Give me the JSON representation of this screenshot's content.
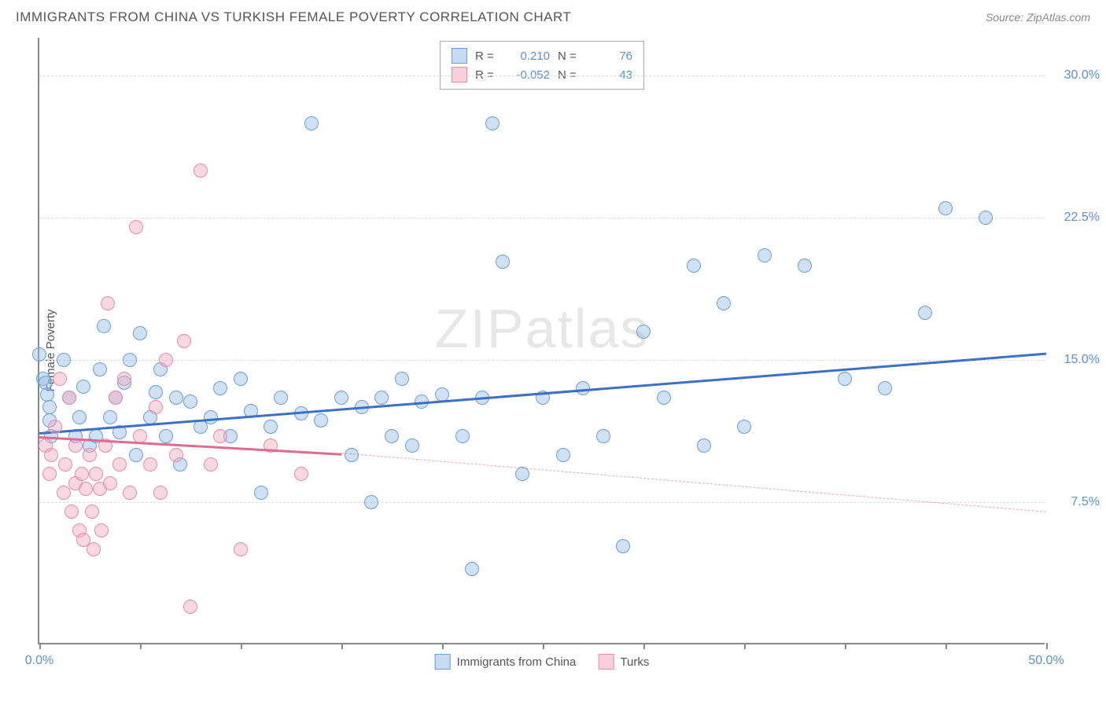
{
  "title": "IMMIGRANTS FROM CHINA VS TURKISH FEMALE POVERTY CORRELATION CHART",
  "source": "Source: ZipAtlas.com",
  "watermark": "ZIPatlas",
  "ylabel": "Female Poverty",
  "chart": {
    "type": "scatter",
    "xlim": [
      0,
      50
    ],
    "ylim": [
      0,
      32
    ],
    "xtick_positions": [
      0,
      5,
      10,
      15,
      20,
      25,
      30,
      35,
      40,
      45,
      50
    ],
    "xtick_labels": {
      "0": "0.0%",
      "50": "50.0%"
    },
    "ytick_positions": [
      7.5,
      15.0,
      22.5,
      30.0
    ],
    "ytick_labels": [
      "7.5%",
      "15.0%",
      "22.5%",
      "30.0%"
    ],
    "grid_color": "#dddddd",
    "axis_color": "#888888",
    "label_color": "#5b8fd6",
    "marker_radius": 9,
    "series": [
      {
        "name": "Immigrants from China",
        "color_fill": "rgba(149,189,231,0.45)",
        "color_stroke": "#6b9fd6",
        "trend_color": "#3d6fc5",
        "trend_solid": {
          "x1": 0,
          "y1": 11.2,
          "x2": 50,
          "y2": 15.4
        },
        "R": "0.210",
        "N": "76",
        "points": [
          [
            0,
            15.3
          ],
          [
            0.2,
            14.0
          ],
          [
            0.3,
            13.8
          ],
          [
            0.4,
            13.2
          ],
          [
            0.5,
            12.5
          ],
          [
            0.5,
            11.8
          ],
          [
            0.6,
            11.0
          ],
          [
            1.2,
            15.0
          ],
          [
            1.5,
            13.0
          ],
          [
            1.8,
            11.0
          ],
          [
            2.0,
            12.0
          ],
          [
            2.2,
            13.6
          ],
          [
            2.5,
            10.5
          ],
          [
            2.8,
            11.0
          ],
          [
            3.0,
            14.5
          ],
          [
            3.2,
            16.8
          ],
          [
            3.5,
            12.0
          ],
          [
            3.8,
            13.0
          ],
          [
            4.0,
            11.2
          ],
          [
            4.2,
            13.8
          ],
          [
            4.5,
            15.0
          ],
          [
            4.8,
            10.0
          ],
          [
            5.0,
            16.4
          ],
          [
            5.5,
            12.0
          ],
          [
            5.8,
            13.3
          ],
          [
            6.0,
            14.5
          ],
          [
            6.3,
            11.0
          ],
          [
            6.8,
            13.0
          ],
          [
            7.0,
            9.5
          ],
          [
            7.5,
            12.8
          ],
          [
            8.0,
            11.5
          ],
          [
            8.5,
            12.0
          ],
          [
            9.0,
            13.5
          ],
          [
            9.5,
            11.0
          ],
          [
            10.0,
            14.0
          ],
          [
            10.5,
            12.3
          ],
          [
            11.0,
            8.0
          ],
          [
            11.5,
            11.5
          ],
          [
            12.0,
            13.0
          ],
          [
            13.0,
            12.2
          ],
          [
            13.5,
            27.5
          ],
          [
            14.0,
            11.8
          ],
          [
            15.0,
            13.0
          ],
          [
            15.5,
            10.0
          ],
          [
            16.0,
            12.5
          ],
          [
            16.5,
            7.5
          ],
          [
            17.0,
            13.0
          ],
          [
            17.5,
            11.0
          ],
          [
            18.0,
            14.0
          ],
          [
            18.5,
            10.5
          ],
          [
            19.0,
            12.8
          ],
          [
            20.0,
            13.2
          ],
          [
            21.0,
            11.0
          ],
          [
            21.5,
            4.0
          ],
          [
            22.0,
            13.0
          ],
          [
            22.5,
            27.5
          ],
          [
            23.0,
            20.2
          ],
          [
            24.0,
            9.0
          ],
          [
            25.0,
            13.0
          ],
          [
            26.0,
            10.0
          ],
          [
            27.0,
            13.5
          ],
          [
            28.0,
            11.0
          ],
          [
            29.0,
            5.2
          ],
          [
            30.0,
            16.5
          ],
          [
            31.0,
            13.0
          ],
          [
            32.5,
            20.0
          ],
          [
            33.0,
            10.5
          ],
          [
            34.0,
            18.0
          ],
          [
            35.0,
            11.5
          ],
          [
            36.0,
            20.5
          ],
          [
            38.0,
            20.0
          ],
          [
            40.0,
            14.0
          ],
          [
            42.0,
            13.5
          ],
          [
            44.0,
            17.5
          ],
          [
            45.0,
            23.0
          ],
          [
            47.0,
            22.5
          ]
        ]
      },
      {
        "name": "Turks",
        "color_fill": "rgba(242,169,189,0.45)",
        "color_stroke": "#e88ba8",
        "trend_color": "#e06a90",
        "trend_solid": {
          "x1": 0,
          "y1": 11.0,
          "x2": 15,
          "y2": 10.1
        },
        "trend_dashed": {
          "x1": 15,
          "y1": 10.1,
          "x2": 50,
          "y2": 7.0
        },
        "R": "-0.052",
        "N": "43",
        "points": [
          [
            0.3,
            10.5
          ],
          [
            0.5,
            9.0
          ],
          [
            0.6,
            10.0
          ],
          [
            0.8,
            11.5
          ],
          [
            1.0,
            14.0
          ],
          [
            1.2,
            8.0
          ],
          [
            1.3,
            9.5
          ],
          [
            1.5,
            13.0
          ],
          [
            1.6,
            7.0
          ],
          [
            1.8,
            10.5
          ],
          [
            1.8,
            8.5
          ],
          [
            2.0,
            6.0
          ],
          [
            2.1,
            9.0
          ],
          [
            2.2,
            5.5
          ],
          [
            2.3,
            8.2
          ],
          [
            2.5,
            10.0
          ],
          [
            2.6,
            7.0
          ],
          [
            2.7,
            5.0
          ],
          [
            2.8,
            9.0
          ],
          [
            3.0,
            8.2
          ],
          [
            3.1,
            6.0
          ],
          [
            3.3,
            10.5
          ],
          [
            3.4,
            18.0
          ],
          [
            3.5,
            8.5
          ],
          [
            3.8,
            13.0
          ],
          [
            4.0,
            9.5
          ],
          [
            4.2,
            14.0
          ],
          [
            4.5,
            8.0
          ],
          [
            4.8,
            22.0
          ],
          [
            5.0,
            11.0
          ],
          [
            5.5,
            9.5
          ],
          [
            5.8,
            12.5
          ],
          [
            6.0,
            8.0
          ],
          [
            6.3,
            15.0
          ],
          [
            6.8,
            10.0
          ],
          [
            7.2,
            16.0
          ],
          [
            7.5,
            2.0
          ],
          [
            8.0,
            25.0
          ],
          [
            8.5,
            9.5
          ],
          [
            9.0,
            11.0
          ],
          [
            10.0,
            5.0
          ],
          [
            11.5,
            10.5
          ],
          [
            13.0,
            9.0
          ]
        ]
      }
    ]
  },
  "legend_bottom": [
    {
      "label": "Immigrants from China",
      "swatch": "blue"
    },
    {
      "label": "Turks",
      "swatch": "pink"
    }
  ]
}
